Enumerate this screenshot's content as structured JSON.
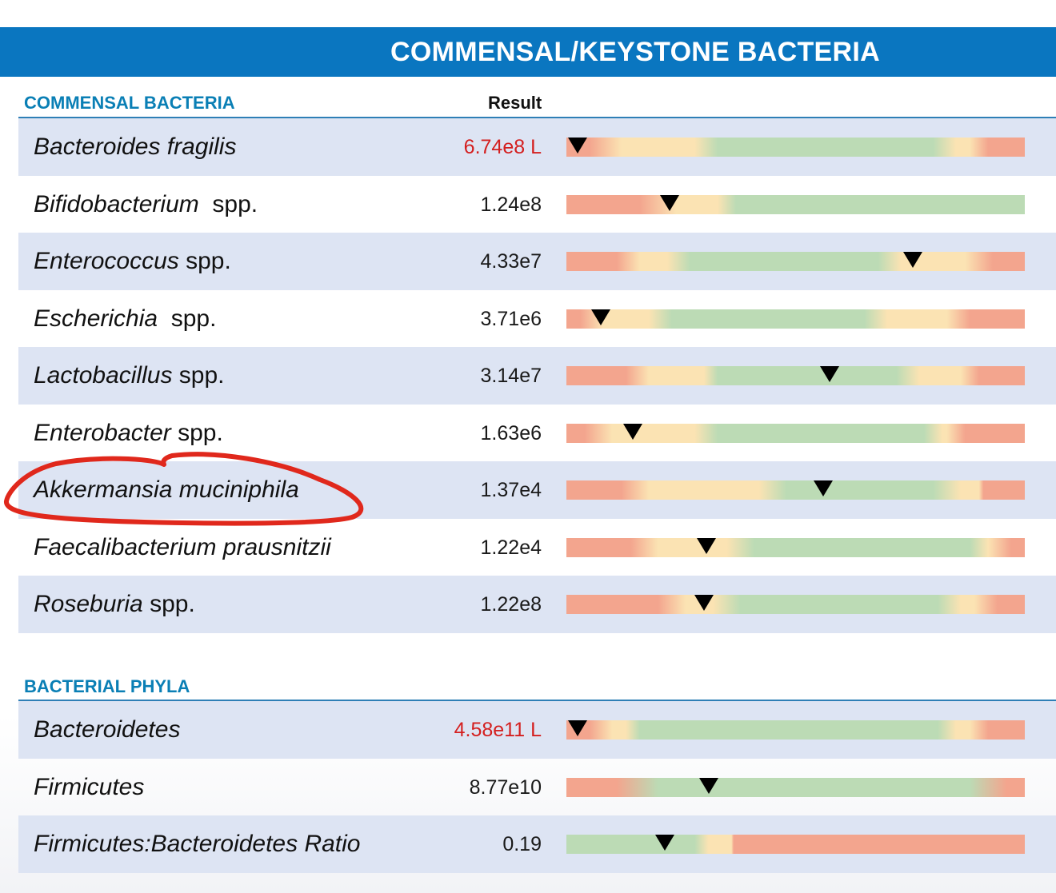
{
  "header": {
    "title": "COMMENSAL/KEYSTONE BACTERIA"
  },
  "sections": [
    {
      "title": "COMMENSAL BACTERIA",
      "result_header": "Result",
      "rows": [
        {
          "name_italic": "Bacteroides fragilis",
          "name_suffix": "",
          "result": "6.74e8 L",
          "flag": "low",
          "marker_pct": 2.5,
          "gradient": "linear-gradient(90deg,#f3a58e 0%,#f3a58e 5%,#fbe3b3 12%,#fbe3b3 28%,#bcdbb5 33%,#bcdbb5 80%,#fbe3b3 85%,#fbe3b3 88%,#f3a58e 92%,#f3a58e 100%)"
        },
        {
          "name_italic": "Bifidobacterium",
          "name_suffix": "  spp.",
          "result": "1.24e8",
          "flag": "",
          "marker_pct": 22.5,
          "gradient": "linear-gradient(90deg,#f3a58e 0%,#f3a58e 16%,#fbe3b3 24%,#fbe3b3 33%,#bcdbb5 37%,#bcdbb5 100%)"
        },
        {
          "name_italic": "Enterococcus",
          "name_suffix": " spp.",
          "result": "4.33e7",
          "flag": "",
          "marker_pct": 75.5,
          "gradient": "linear-gradient(90deg,#f3a58e 0%,#f3a58e 11%,#fbe3b3 16%,#fbe3b3 22%,#bcdbb5 27%,#bcdbb5 68%,#fbe3b3 73%,#fbe3b3 87%,#f3a58e 93%,#f3a58e 100%)"
        },
        {
          "name_italic": "Escherichia",
          "name_suffix": "  spp.",
          "result": "3.71e6",
          "flag": "",
          "marker_pct": 7.5,
          "gradient": "linear-gradient(90deg,#f3a58e 0%,#f3a58e 3%,#fbe3b3 8%,#fbe3b3 18%,#bcdbb5 23%,#bcdbb5 65%,#fbe3b3 70%,#fbe3b3 83%,#f3a58e 88%,#f3a58e 100%)"
        },
        {
          "name_italic": "Lactobacillus",
          "name_suffix": " spp.",
          "result": "3.14e7",
          "flag": "",
          "marker_pct": 57.5,
          "gradient": "linear-gradient(90deg,#f3a58e 0%,#f3a58e 13%,#fbe3b3 18%,#fbe3b3 30%,#bcdbb5 33%,#bcdbb5 72%,#fbe3b3 77%,#fbe3b3 86%,#f3a58e 90%,#f3a58e 100%)"
        },
        {
          "name_italic": "Enterobacter",
          "name_suffix": " spp.",
          "result": "1.63e6",
          "flag": "",
          "marker_pct": 14.5,
          "gradient": "linear-gradient(90deg,#f3a58e 0%,#f3a58e 4%,#fbe3b3 10%,#fbe3b3 28%,#bcdbb5 33%,#bcdbb5 78%,#fbe3b3 82%,#fbe3b3 83%,#f3a58e 87%,#f3a58e 100%)"
        },
        {
          "name_italic": "Akkermansia muciniphila",
          "name_suffix": "",
          "result": "1.37e4",
          "flag": "",
          "marker_pct": 56,
          "gradient": "linear-gradient(90deg,#f3a58e 0%,#f3a58e 12%,#fbe3b3 18%,#fbe3b3 42%,#bcdbb5 48%,#bcdbb5 80%,#fbe3b3 86%,#fbe3b3 90%,#f3a58e 91%,#f3a58e 100%)"
        },
        {
          "name_italic": "Faecalibacterium prausnitzii",
          "name_suffix": "",
          "result": "1.22e4",
          "flag": "",
          "marker_pct": 30.5,
          "gradient": "linear-gradient(90deg,#f3a58e 0%,#f3a58e 14%,#fbe3b3 20%,#fbe3b3 35%,#bcdbb5 41%,#bcdbb5 88%,#fbe3b3 92%,#f3a58e 97%,#f3a58e 100%)"
        },
        {
          "name_italic": "Roseburia",
          "name_suffix": " spp.",
          "result": "1.22e8",
          "flag": "",
          "marker_pct": 30,
          "gradient": "linear-gradient(90deg,#f3a58e 0%,#f3a58e 20%,#fbe3b3 26%,#fbe3b3 32%,#bcdbb5 38%,#bcdbb5 81%,#fbe3b3 86%,#fbe3b3 89%,#f3a58e 94%,#f3a58e 100%)"
        }
      ]
    },
    {
      "title": "BACTERIAL PHYLA",
      "rows": [
        {
          "name_italic": "Bacteroidetes",
          "name_suffix": "",
          "result": "4.58e11 L",
          "flag": "low",
          "marker_pct": 2.5,
          "gradient": "linear-gradient(90deg,#f3a58e 0%,#f3a58e 5%,#fbe3b3 10%,#fbe3b3 13%,#bcdbb5 16%,#bcdbb5 81%,#fbe3b3 85%,#fbe3b3 88%,#f3a58e 92%,#f3a58e 100%)"
        },
        {
          "name_italic": "Firmicutes",
          "name_suffix": "",
          "result": "8.77e10",
          "flag": "",
          "marker_pct": 31,
          "gradient": "linear-gradient(90deg,#f3a58e 0%,#f3a58e 11%,#bcdbb5 20%,#bcdbb5 88%,#f3a58e 96%,#f3a58e 100%)"
        },
        {
          "name_italic": "Firmicutes:Bacteroidetes Ratio",
          "name_suffix": "",
          "result": "0.19",
          "flag": "",
          "marker_pct": 21.5,
          "gradient": "linear-gradient(90deg,#bcdbb5 0%,#bcdbb5 28%,#fbe3b3 31%,#fbe3b3 36%,#f3a58e 36.5%,#f3a58e 100%)"
        }
      ]
    }
  ]
}
